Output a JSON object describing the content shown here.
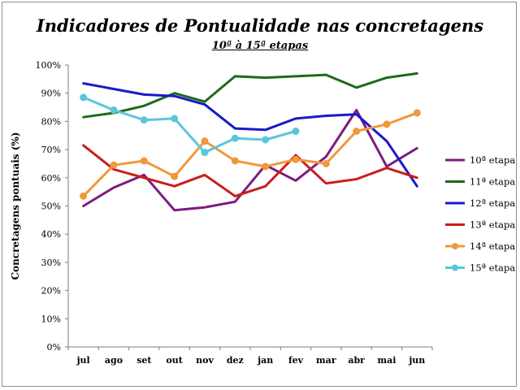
{
  "chart_data": {
    "type": "line",
    "title": "Indicadores de Pontualidade nas concretagens",
    "subtitle": "10ª à 15ª etapas",
    "xlabel": "",
    "ylabel": "Concretagens pontuais (%)",
    "categories": [
      "jul",
      "ago",
      "set",
      "out",
      "nov",
      "dez",
      "jan",
      "fev",
      "mar",
      "abr",
      "mai",
      "jun"
    ],
    "ylim": [
      0,
      100
    ],
    "yticks": [
      "0%",
      "10%",
      "20%",
      "30%",
      "40%",
      "50%",
      "60%",
      "70%",
      "80%",
      "90%",
      "100%"
    ],
    "grid": false,
    "legend": "right",
    "series": [
      {
        "name": "10ª etapa",
        "color": "#7f1b7f",
        "markers": false,
        "values": [
          50,
          56.5,
          61,
          48.5,
          49.5,
          51.5,
          64.5,
          59,
          67.5,
          84,
          64,
          70.5
        ]
      },
      {
        "name": "11ª etapa",
        "color": "#1a6b1a",
        "markers": false,
        "values": [
          81.5,
          83,
          85.5,
          90,
          87,
          96,
          95.5,
          96,
          96.5,
          92,
          95.5,
          97
        ]
      },
      {
        "name": "12ª etapa",
        "color": "#1919c8",
        "markers": false,
        "values": [
          93.5,
          91.5,
          89.5,
          89,
          86,
          77.5,
          77,
          81,
          82,
          82.5,
          73,
          57
        ]
      },
      {
        "name": "13ª etapa",
        "color": "#cc1c1c",
        "markers": false,
        "values": [
          71.5,
          63,
          60,
          57,
          61,
          53.5,
          57,
          68,
          58,
          59.5,
          63.5,
          60
        ]
      },
      {
        "name": "14ª etapa",
        "color": "#f0983a",
        "markers": true,
        "values": [
          53.5,
          64.5,
          66,
          60.5,
          73,
          66,
          64,
          66.5,
          65,
          76.5,
          79,
          83
        ]
      },
      {
        "name": "15ª etapa",
        "color": "#5bc6da",
        "markers": true,
        "values": [
          88.5,
          84,
          80.5,
          81,
          69,
          74,
          73.5,
          76.5,
          null,
          null,
          null,
          null
        ]
      }
    ]
  }
}
